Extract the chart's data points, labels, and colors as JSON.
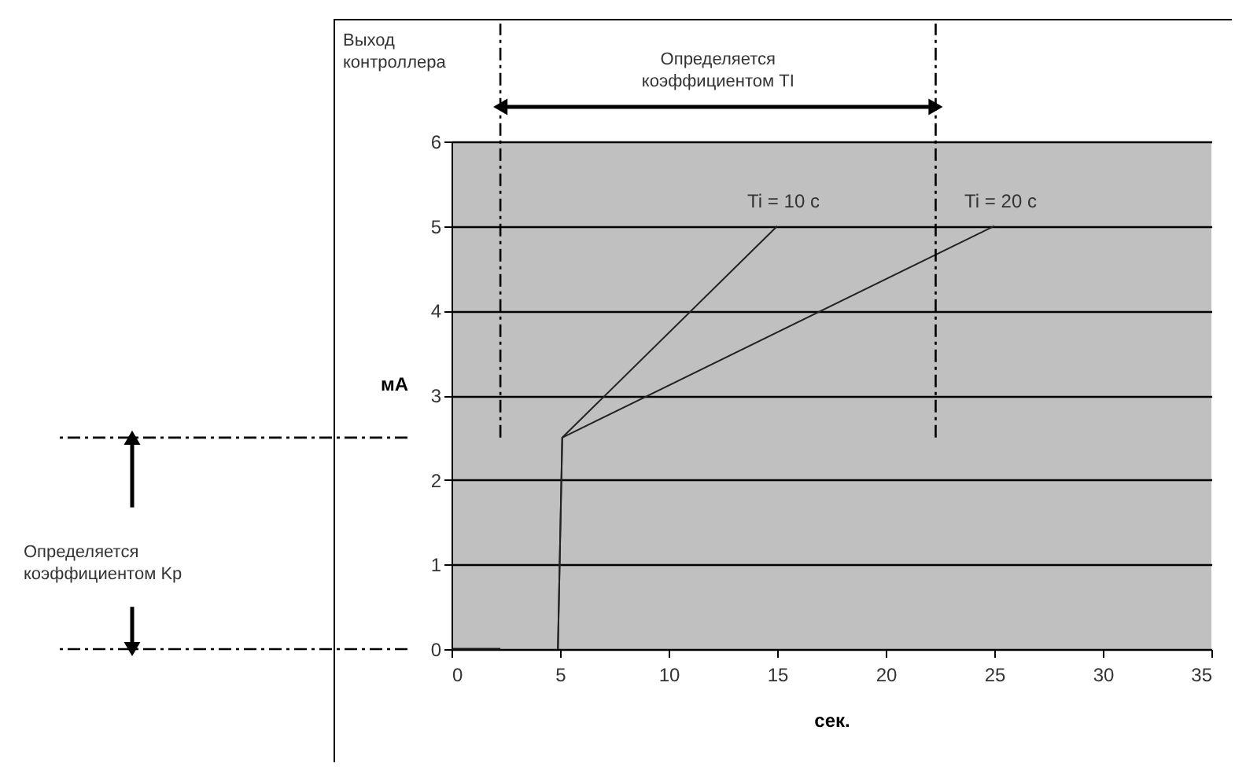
{
  "chart_data": {
    "type": "line",
    "xlabel": "сек.",
    "ylabel": "мА",
    "xlim": [
      0,
      35
    ],
    "xticks": [
      0,
      5,
      10,
      15,
      20,
      25,
      30,
      35
    ],
    "ylim": [
      0,
      6
    ],
    "yticks": [
      0,
      1,
      2,
      3,
      4,
      5,
      6
    ],
    "grid": "y",
    "marker": "none",
    "line_style": "solid",
    "series": [
      {
        "color": "#111111",
        "x": [
          0,
          2.25
        ],
        "values": [
          0,
          0
        ]
      },
      {
        "name": "Ti = 10 с",
        "color": "#222222",
        "x": [
          4.9,
          5.1,
          15
        ],
        "values": [
          0,
          2.5,
          5
        ]
      },
      {
        "name": "Ti = 20 с",
        "color": "#222222",
        "x": [
          4.9,
          5.1,
          25
        ],
        "values": [
          0,
          2.5,
          5
        ]
      }
    ],
    "ref_lines": [
      {
        "axis": "x",
        "value": 2.25,
        "line_style": "dashed",
        "color": "#000000"
      },
      {
        "axis": "x",
        "value": 22.3,
        "line_style": "dashed",
        "color": "#000000"
      }
    ],
    "annotations": [
      "Выход\nконтроллера",
      "Определяется\nкоэффициентом TI",
      "Определяется\nкоэффициентом Kp"
    ]
  }
}
